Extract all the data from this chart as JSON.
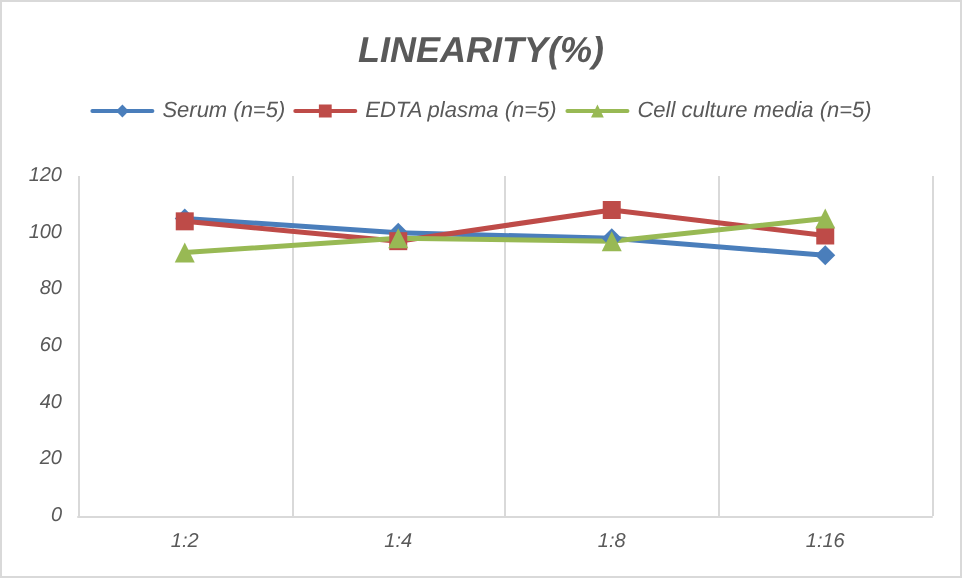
{
  "chart_data": {
    "type": "line",
    "title": "LINEARITY(%)",
    "categories": [
      "1:2",
      "1:4",
      "1:8",
      "1:16"
    ],
    "series": [
      {
        "name": "Serum (n=5)",
        "color": "#4a7ebb",
        "marker": "diamond",
        "values": [
          105,
          100,
          98,
          92
        ]
      },
      {
        "name": "EDTA plasma (n=5)",
        "color": "#be4b48",
        "marker": "square",
        "values": [
          104,
          97,
          108,
          99
        ]
      },
      {
        "name": "Cell culture media (n=5)",
        "color": "#98b954",
        "marker": "triangle",
        "values": [
          93,
          98,
          97,
          105
        ]
      }
    ],
    "ylim": [
      0,
      120
    ],
    "yticks": [
      0,
      20,
      40,
      60,
      80,
      100,
      120
    ],
    "grid": "x",
    "legend": "top"
  }
}
